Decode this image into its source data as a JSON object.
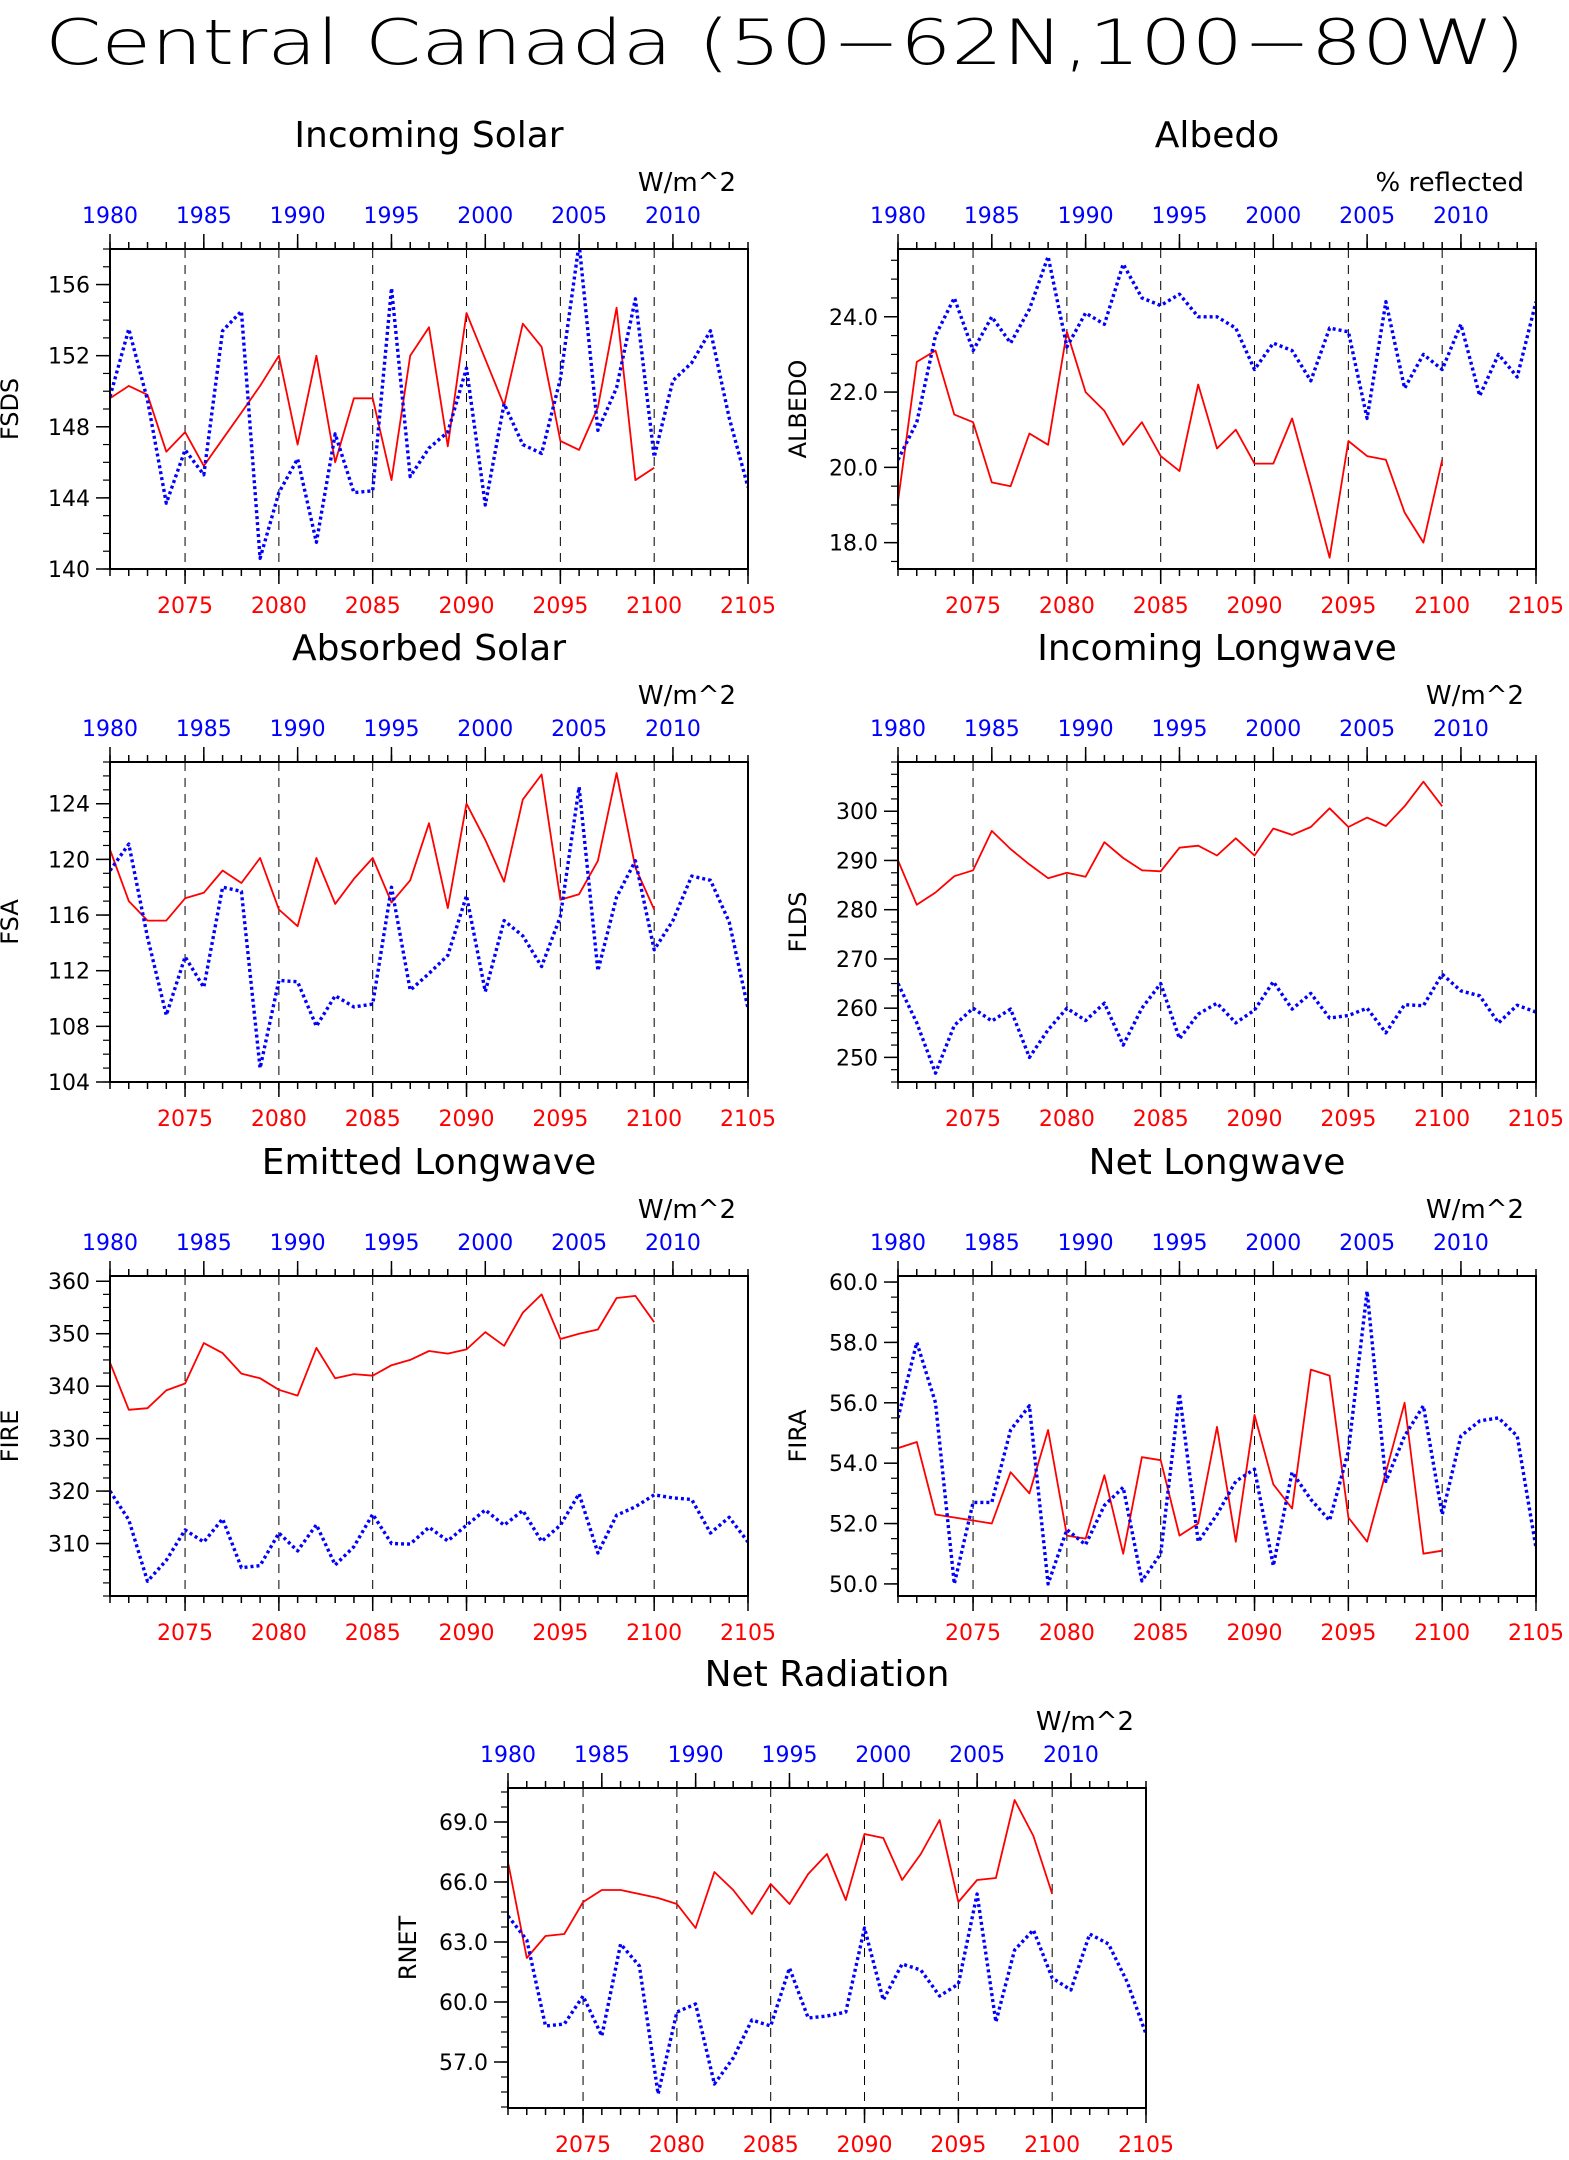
{
  "title": "Central Canada (50−62N,100−80W)",
  "colors": {
    "future": "#ff0000",
    "historical": "#0000ff",
    "axis": "#000000"
  },
  "chart_data": [
    {
      "type": "line",
      "title": "Incoming Solar",
      "ylabel": "FSDS",
      "units": "W/m^2",
      "ylim": [
        140,
        158
      ],
      "yticks": [
        140,
        144,
        148,
        152,
        156
      ],
      "ydec": 0,
      "bottom_axis": {
        "range": [
          2071,
          2105
        ],
        "ticks": [
          2075,
          2080,
          2085,
          2090,
          2095,
          2100,
          2105
        ]
      },
      "top_axis": {
        "range": [
          1980,
          2014
        ],
        "ticks": [
          1980,
          1985,
          1990,
          1995,
          2000,
          2005,
          2010
        ]
      },
      "series": [
        {
          "x_start": 2071,
          "values": [
            149.6,
            150.3,
            149.8,
            146.6,
            147.7,
            145.8,
            147.3,
            148.8,
            150.3,
            152.0,
            147.0,
            152.0,
            146.0,
            149.6,
            149.6,
            145.0,
            152.0,
            153.6,
            146.9,
            154.4,
            151.8,
            149.2,
            153.8,
            152.5,
            147.2,
            146.7,
            149.1,
            154.7,
            145.0,
            145.7
          ]
        },
        {
          "x_start": 1980,
          "values": [
            149.7,
            153.5,
            149.5,
            143.7,
            146.7,
            145.3,
            153.4,
            154.5,
            140.6,
            144.3,
            146.2,
            141.5,
            147.6,
            144.3,
            144.4,
            155.8,
            145.2,
            146.8,
            147.7,
            151.3,
            143.6,
            149.3,
            147.0,
            146.5,
            150.7,
            158.3,
            147.8,
            150.2,
            155.2,
            146.3,
            150.6,
            151.6,
            153.4,
            148.5,
            144.6
          ]
        }
      ]
    },
    {
      "type": "line",
      "title": "Albedo",
      "ylabel": "ALBEDO",
      "units": "% reflected",
      "ylim": [
        17.3,
        25.8
      ],
      "yticks": [
        18.0,
        20.0,
        22.0,
        24.0
      ],
      "ydec": 1,
      "bottom_axis": {
        "range": [
          2071,
          2105
        ],
        "ticks": [
          2075,
          2080,
          2085,
          2090,
          2095,
          2100,
          2105
        ]
      },
      "top_axis": {
        "range": [
          1980,
          2014
        ],
        "ticks": [
          1980,
          1985,
          1990,
          1995,
          2000,
          2005,
          2010
        ]
      },
      "series": [
        {
          "x_start": 2071,
          "values": [
            19.1,
            22.8,
            23.1,
            21.4,
            21.2,
            19.6,
            19.5,
            20.9,
            20.6,
            23.6,
            22.0,
            21.5,
            20.6,
            21.2,
            20.3,
            19.9,
            22.2,
            20.5,
            21.0,
            20.1,
            20.1,
            21.3,
            19.5,
            17.6,
            20.7,
            20.3,
            20.2,
            18.8,
            18.0,
            20.2
          ]
        },
        {
          "x_start": 1980,
          "values": [
            20.2,
            21.2,
            23.5,
            24.5,
            23.1,
            24.0,
            23.3,
            24.2,
            25.6,
            23.2,
            24.1,
            23.8,
            25.4,
            24.5,
            24.3,
            24.6,
            24.0,
            24.0,
            23.7,
            22.6,
            23.3,
            23.1,
            22.3,
            23.7,
            23.6,
            21.3,
            24.4,
            22.1,
            23.0,
            22.6,
            23.8,
            21.9,
            23.0,
            22.4,
            24.4
          ]
        }
      ]
    },
    {
      "type": "line",
      "title": "Absorbed Solar",
      "ylabel": "FSA",
      "units": "W/m^2",
      "ylim": [
        104,
        127
      ],
      "yticks": [
        104,
        108,
        112,
        116,
        120,
        124
      ],
      "ydec": 0,
      "bottom_axis": {
        "range": [
          2071,
          2105
        ],
        "ticks": [
          2075,
          2080,
          2085,
          2090,
          2095,
          2100,
          2105
        ]
      },
      "top_axis": {
        "range": [
          1980,
          2014
        ],
        "ticks": [
          1980,
          1985,
          1990,
          1995,
          2000,
          2005,
          2010
        ]
      },
      "series": [
        {
          "x_start": 2071,
          "values": [
            120.7,
            117.0,
            115.6,
            115.6,
            117.2,
            117.6,
            119.2,
            118.3,
            120.1,
            116.4,
            115.2,
            120.1,
            116.8,
            118.6,
            120.1,
            116.9,
            118.5,
            122.6,
            116.5,
            124.0,
            121.4,
            118.4,
            124.3,
            126.1,
            117.1,
            117.5,
            119.9,
            126.2,
            119.4,
            116.4
          ]
        },
        {
          "x_start": 1980,
          "values": [
            119.2,
            121.1,
            114.4,
            108.8,
            113.0,
            110.8,
            118.0,
            117.7,
            105.0,
            111.3,
            111.2,
            108.0,
            110.2,
            109.4,
            109.6,
            118.0,
            110.6,
            111.8,
            113.1,
            117.4,
            110.5,
            115.6,
            114.5,
            112.3,
            115.9,
            125.2,
            112.0,
            117.3,
            119.9,
            113.5,
            115.6,
            118.8,
            118.5,
            115.5,
            109.3
          ]
        }
      ]
    },
    {
      "type": "line",
      "title": "Incoming Longwave",
      "ylabel": "FLDS",
      "units": "W/m^2",
      "ylim": [
        245,
        310
      ],
      "yticks": [
        250,
        260,
        270,
        280,
        290,
        300
      ],
      "ydec": 0,
      "bottom_axis": {
        "range": [
          2071,
          2105
        ],
        "ticks": [
          2075,
          2080,
          2085,
          2090,
          2095,
          2100,
          2105
        ]
      },
      "top_axis": {
        "range": [
          1980,
          2014
        ],
        "ticks": [
          1980,
          1985,
          1990,
          1995,
          2000,
          2005,
          2010
        ]
      },
      "series": [
        {
          "x_start": 2071,
          "values": [
            290.0,
            281.0,
            283.5,
            286.8,
            288.0,
            296.0,
            292.3,
            289.2,
            286.4,
            287.5,
            286.7,
            293.7,
            290.5,
            288.0,
            287.8,
            292.6,
            293.0,
            291.0,
            294.5,
            291.0,
            296.5,
            295.2,
            296.8,
            300.6,
            296.8,
            298.7,
            297.0,
            301.0,
            306.0,
            301.0
          ]
        },
        {
          "x_start": 1980,
          "values": [
            265.0,
            257.0,
            246.8,
            256.5,
            260.0,
            257.4,
            259.8,
            250.0,
            255.6,
            260.0,
            257.5,
            261.0,
            252.5,
            260.0,
            265.0,
            253.8,
            258.8,
            261.0,
            257.0,
            259.6,
            265.4,
            259.8,
            263.0,
            258.0,
            258.5,
            260.0,
            255.0,
            260.7,
            260.5,
            266.9,
            263.5,
            262.5,
            257.0,
            260.6,
            259.2
          ]
        }
      ]
    },
    {
      "type": "line",
      "title": "Emitted Longwave",
      "ylabel": "FIRE",
      "units": "W/m^2",
      "ylim": [
        300,
        361
      ],
      "yticks": [
        310,
        320,
        330,
        340,
        350,
        360
      ],
      "ydec": 0,
      "bottom_axis": {
        "range": [
          2071,
          2105
        ],
        "ticks": [
          2075,
          2080,
          2085,
          2090,
          2095,
          2100,
          2105
        ]
      },
      "top_axis": {
        "range": [
          1980,
          2014
        ],
        "ticks": [
          1980,
          1985,
          1990,
          1995,
          2000,
          2005,
          2010
        ]
      },
      "series": [
        {
          "x_start": 2071,
          "values": [
            344.5,
            335.5,
            335.8,
            339.2,
            340.5,
            348.2,
            346.3,
            342.4,
            341.5,
            339.3,
            338.2,
            347.3,
            341.5,
            342.3,
            342.0,
            344.0,
            345.0,
            346.7,
            346.2,
            347.0,
            350.3,
            347.7,
            354.0,
            357.5,
            349.0,
            350.0,
            350.8,
            356.8,
            357.2,
            352.2
          ]
        },
        {
          "x_start": 1980,
          "values": [
            320.0,
            314.5,
            302.8,
            306.8,
            312.6,
            310.3,
            314.7,
            305.4,
            305.8,
            312.0,
            308.6,
            313.6,
            305.9,
            309.4,
            315.6,
            310.0,
            309.9,
            313.1,
            310.5,
            313.5,
            316.4,
            313.5,
            316.3,
            310.4,
            313.5,
            319.5,
            308.2,
            315.4,
            317.0,
            319.3,
            318.7,
            318.4,
            312.0,
            315.0,
            310.3
          ]
        }
      ]
    },
    {
      "type": "line",
      "title": "Net Longwave",
      "ylabel": "FIRA",
      "units": "W/m^2",
      "ylim": [
        49.6,
        60.2
      ],
      "yticks": [
        50.0,
        52.0,
        54.0,
        56.0,
        58.0,
        60.0
      ],
      "ydec": 1,
      "bottom_axis": {
        "range": [
          2071,
          2105
        ],
        "ticks": [
          2075,
          2080,
          2085,
          2090,
          2095,
          2100,
          2105
        ]
      },
      "top_axis": {
        "range": [
          1980,
          2014
        ],
        "ticks": [
          1980,
          1985,
          1990,
          1995,
          2000,
          2005,
          2010
        ]
      },
      "series": [
        {
          "x_start": 2071,
          "values": [
            54.5,
            54.7,
            52.3,
            52.2,
            52.1,
            52.0,
            53.7,
            53.0,
            55.1,
            51.6,
            51.5,
            53.6,
            51.0,
            54.2,
            54.1,
            51.6,
            52.0,
            55.2,
            51.4,
            55.6,
            53.3,
            52.5,
            57.1,
            56.9,
            52.2,
            51.4,
            53.7,
            56.0,
            51.0,
            51.1
          ]
        },
        {
          "x_start": 1980,
          "values": [
            55.5,
            58.0,
            56.0,
            50.0,
            52.7,
            52.7,
            55.1,
            55.9,
            50.0,
            51.8,
            51.3,
            52.6,
            53.2,
            50.1,
            51.0,
            56.3,
            51.4,
            52.3,
            53.4,
            53.8,
            50.6,
            53.7,
            52.8,
            52.1,
            54.4,
            59.7,
            53.4,
            54.9,
            55.9,
            52.3,
            54.9,
            55.4,
            55.5,
            54.9,
            51.2
          ]
        }
      ]
    },
    {
      "type": "line",
      "title": "Net Radiation",
      "ylabel": "RNET",
      "units": "W/m^2",
      "ylim": [
        54.7,
        70.7
      ],
      "yticks": [
        57.0,
        60.0,
        63.0,
        66.0,
        69.0
      ],
      "ydec": 1,
      "bottom_axis": {
        "range": [
          2071,
          2105
        ],
        "ticks": [
          2075,
          2080,
          2085,
          2090,
          2095,
          2100,
          2105
        ]
      },
      "top_axis": {
        "range": [
          1980,
          2014
        ],
        "ticks": [
          1980,
          1985,
          1990,
          1995,
          2000,
          2005,
          2010
        ]
      },
      "series": [
        {
          "x_start": 2071,
          "values": [
            67.0,
            62.2,
            63.3,
            63.4,
            65.0,
            65.6,
            65.6,
            65.4,
            65.2,
            64.9,
            63.7,
            66.5,
            65.6,
            64.4,
            65.9,
            64.9,
            66.4,
            67.4,
            65.1,
            68.4,
            68.2,
            66.1,
            67.4,
            69.1,
            65.0,
            66.1,
            66.2,
            70.1,
            68.3,
            65.4
          ]
        },
        {
          "x_start": 1980,
          "values": [
            64.3,
            63.1,
            58.8,
            58.9,
            60.3,
            58.3,
            62.9,
            61.8,
            55.4,
            59.5,
            59.9,
            55.9,
            57.2,
            59.1,
            58.8,
            61.7,
            59.2,
            59.3,
            59.5,
            63.7,
            60.1,
            61.9,
            61.6,
            60.3,
            60.9,
            65.4,
            59.0,
            62.6,
            63.6,
            61.2,
            60.6,
            63.4,
            62.9,
            61.0,
            58.4
          ]
        }
      ]
    }
  ]
}
